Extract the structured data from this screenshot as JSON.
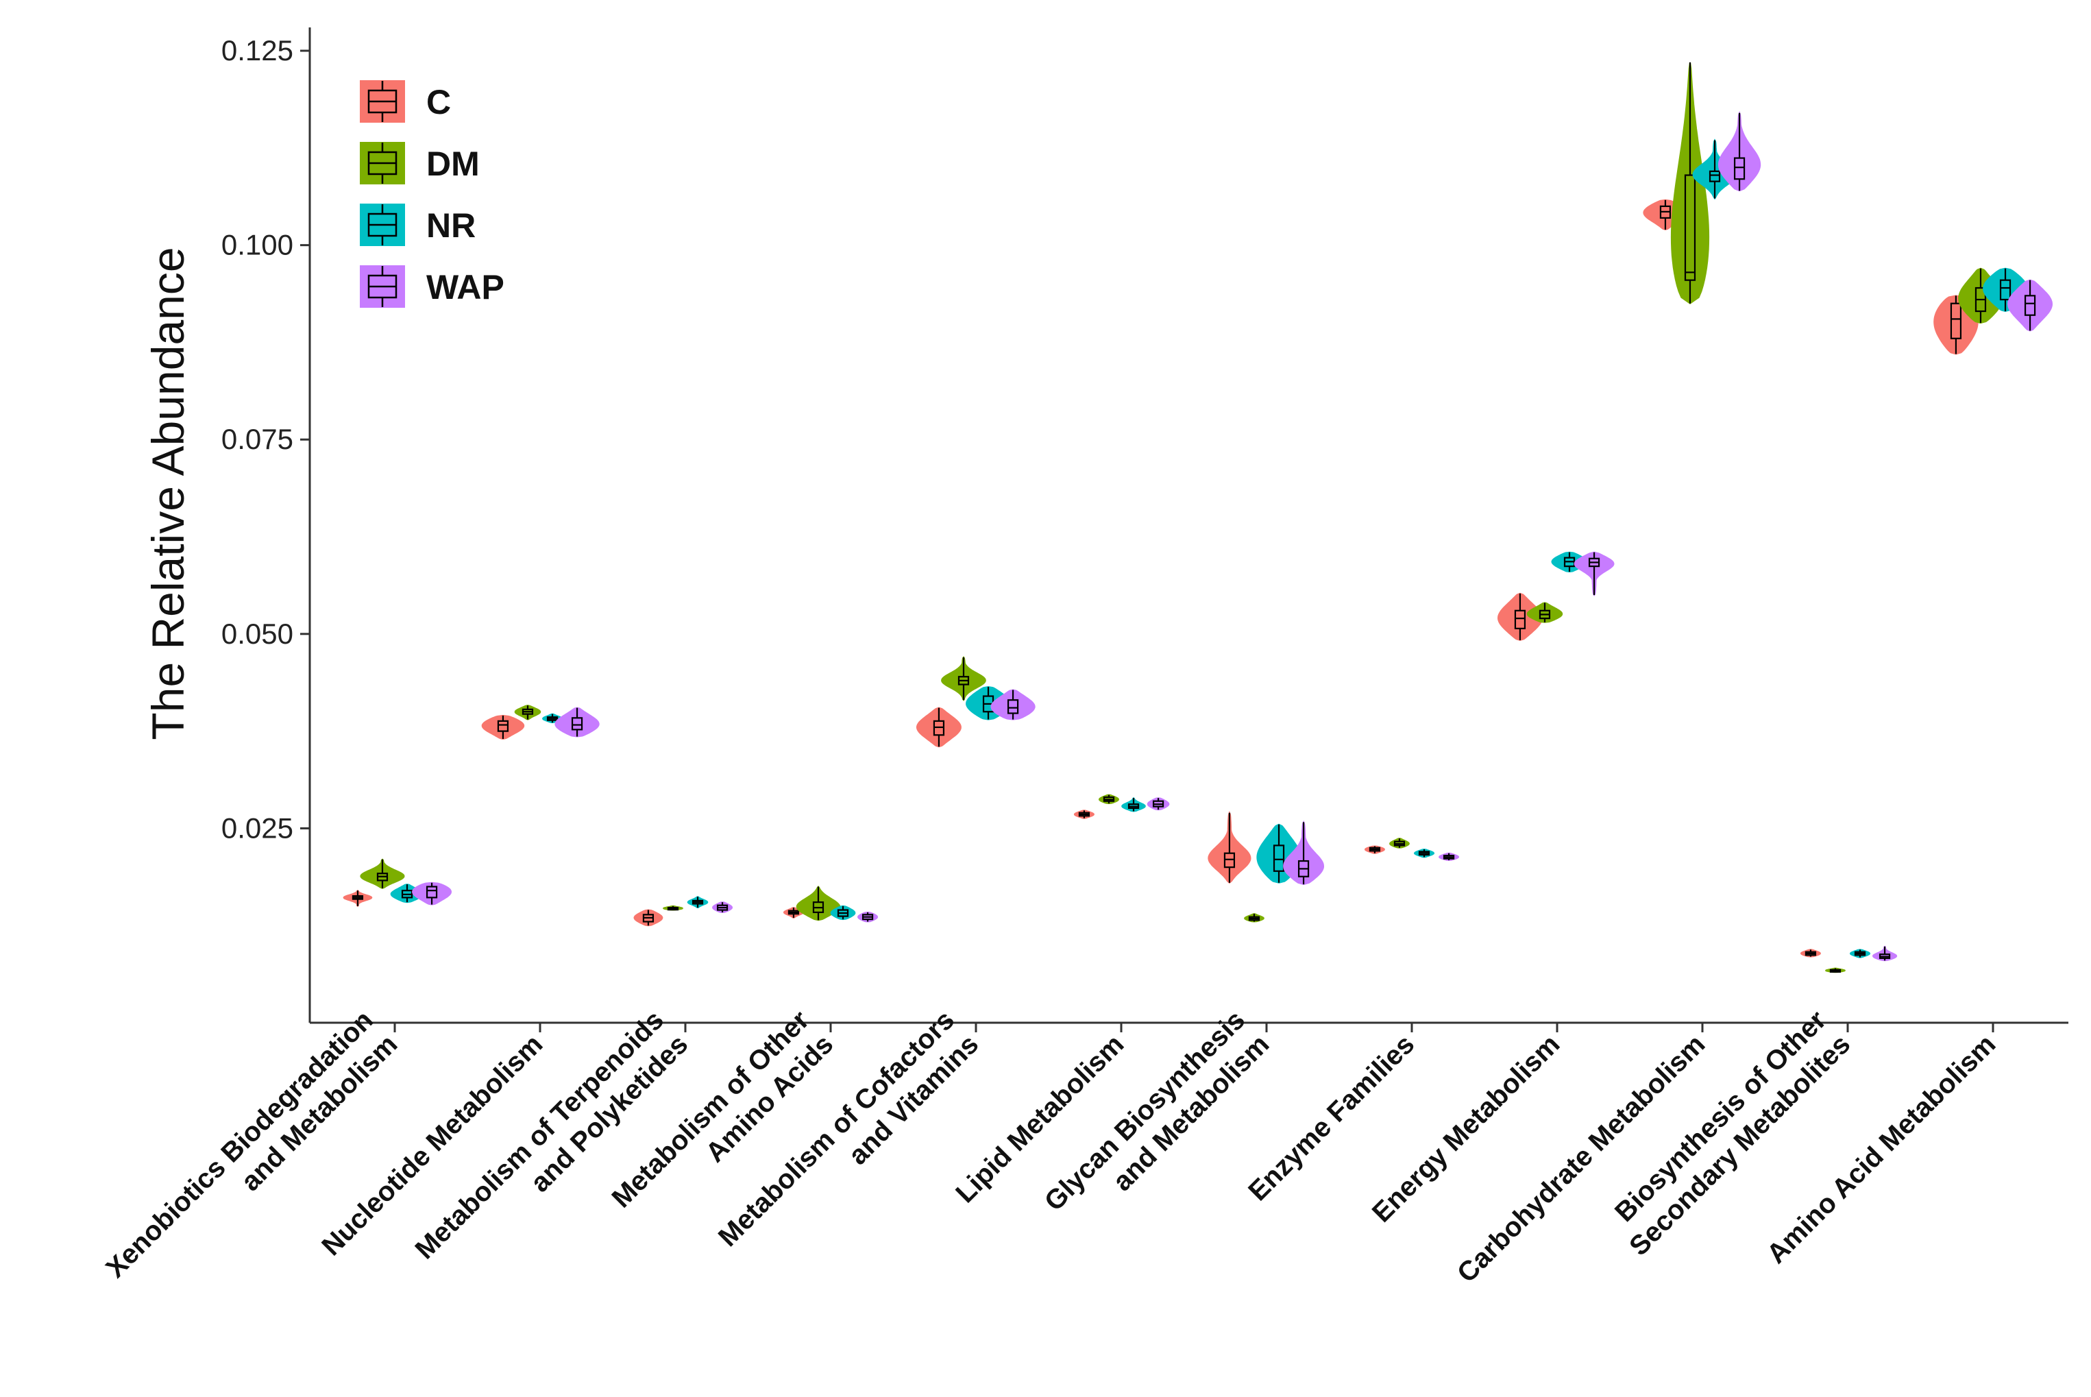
{
  "chart_data": {
    "type": "violin",
    "ylabel": "The Relative Abundance",
    "xlabel": "",
    "ylim": [
      0.0,
      0.128
    ],
    "yticks": [
      0.025,
      0.05,
      0.075,
      0.1,
      0.125
    ],
    "ytick_labels": [
      "0.025",
      "0.050",
      "0.075",
      "0.100",
      "0.125"
    ],
    "legend_position": "top-left",
    "series": [
      {
        "name": "C",
        "color": "#F8766D"
      },
      {
        "name": "DM",
        "color": "#7CAE00"
      },
      {
        "name": "NR",
        "color": "#00BFC4"
      },
      {
        "name": "WAP",
        "color": "#C77CFF"
      }
    ],
    "categories": [
      {
        "lines": [
          "Xenobiotics Biodegradation",
          "and Metabolism"
        ]
      },
      {
        "lines": [
          "Nucleotide Metabolism"
        ]
      },
      {
        "lines": [
          "Metabolism of Terpenoids",
          "and Polyketides"
        ]
      },
      {
        "lines": [
          "Metabolism of Other",
          "Amino Acids"
        ]
      },
      {
        "lines": [
          "Metabolism of Cofactors",
          "and Vitamins"
        ]
      },
      {
        "lines": [
          "Lipid Metabolism"
        ]
      },
      {
        "lines": [
          "Glycan Biosynthesis",
          "and Metabolism"
        ]
      },
      {
        "lines": [
          "Enzyme Families"
        ]
      },
      {
        "lines": [
          "Energy Metabolism"
        ]
      },
      {
        "lines": [
          "Carbohydrate Metabolism"
        ]
      },
      {
        "lines": [
          "Biosynthesis of Other",
          "Secondary Metabolites"
        ]
      },
      {
        "lines": [
          "Amino Acid Metabolism"
        ]
      }
    ],
    "data": [
      [
        [
          0.015,
          0.0159,
          0.0161,
          0.0163,
          0.017
        ],
        [
          0.0173,
          0.0183,
          0.0188,
          0.0192,
          0.021
        ],
        [
          0.0155,
          0.0161,
          0.0165,
          0.017,
          0.0178
        ],
        [
          0.0152,
          0.0161,
          0.017,
          0.0175,
          0.018
        ]
      ],
      [
        [
          0.0365,
          0.0375,
          0.0383,
          0.0388,
          0.0395
        ],
        [
          0.039,
          0.0397,
          0.04,
          0.0403,
          0.0408
        ],
        [
          0.0386,
          0.0389,
          0.0391,
          0.0393,
          0.0397
        ],
        [
          0.0368,
          0.0377,
          0.0383,
          0.0392,
          0.0405
        ]
      ],
      [
        [
          0.0125,
          0.013,
          0.0135,
          0.0139,
          0.0145
        ],
        [
          0.0145,
          0.0146,
          0.0147,
          0.0148,
          0.015
        ],
        [
          0.0148,
          0.0153,
          0.0155,
          0.0157,
          0.0162
        ],
        [
          0.0142,
          0.0145,
          0.0148,
          0.0151,
          0.0155
        ]
      ],
      [
        [
          0.0135,
          0.014,
          0.0142,
          0.0144,
          0.0148
        ],
        [
          0.0132,
          0.0142,
          0.0148,
          0.0155,
          0.0175
        ],
        [
          0.0133,
          0.0137,
          0.0141,
          0.0145,
          0.015
        ],
        [
          0.013,
          0.0133,
          0.0136,
          0.0139,
          0.0142
        ]
      ],
      [
        [
          0.0355,
          0.037,
          0.038,
          0.0388,
          0.0405
        ],
        [
          0.0415,
          0.0435,
          0.044,
          0.0445,
          0.047
        ],
        [
          0.039,
          0.04,
          0.041,
          0.042,
          0.0432
        ],
        [
          0.039,
          0.0398,
          0.0405,
          0.0415,
          0.0428
        ]
      ],
      [
        [
          0.0263,
          0.0266,
          0.0268,
          0.027,
          0.0273
        ],
        [
          0.0282,
          0.0285,
          0.0287,
          0.029,
          0.0293
        ],
        [
          0.0272,
          0.0276,
          0.0278,
          0.0281,
          0.0289
        ],
        [
          0.0274,
          0.0278,
          0.0281,
          0.0285,
          0.0289
        ]
      ],
      [
        [
          0.018,
          0.02,
          0.021,
          0.0218,
          0.027
        ],
        [
          0.013,
          0.0132,
          0.0134,
          0.0136,
          0.014
        ],
        [
          0.018,
          0.0195,
          0.021,
          0.0228,
          0.0255
        ],
        [
          0.0178,
          0.0188,
          0.0198,
          0.0208,
          0.0258
        ]
      ],
      [
        [
          0.0218,
          0.0221,
          0.0223,
          0.0225,
          0.0227
        ],
        [
          0.0225,
          0.0228,
          0.023,
          0.0233,
          0.0237
        ],
        [
          0.0213,
          0.0216,
          0.0218,
          0.022,
          0.0223
        ],
        [
          0.0209,
          0.0211,
          0.0213,
          0.0215,
          0.0218
        ]
      ],
      [
        [
          0.0492,
          0.0507,
          0.052,
          0.053,
          0.0552
        ],
        [
          0.0515,
          0.052,
          0.0525,
          0.053,
          0.054
        ],
        [
          0.058,
          0.0587,
          0.0593,
          0.0598,
          0.0605
        ],
        [
          0.055,
          0.0587,
          0.0592,
          0.0597,
          0.0605
        ]
      ],
      [
        [
          0.102,
          0.1035,
          0.1043,
          0.105,
          0.1058
        ],
        [
          0.0925,
          0.0955,
          0.0965,
          0.109,
          0.1235
        ],
        [
          0.106,
          0.1082,
          0.109,
          0.1095,
          0.1135
        ],
        [
          0.107,
          0.1085,
          0.11,
          0.1112,
          0.117
        ]
      ],
      [
        [
          0.0085,
          0.0087,
          0.0089,
          0.0091,
          0.0094
        ],
        [
          0.0065,
          0.0066,
          0.0067,
          0.0068,
          0.007
        ],
        [
          0.0084,
          0.0087,
          0.0089,
          0.0091,
          0.0094
        ],
        [
          0.008,
          0.0083,
          0.0085,
          0.0088,
          0.0098
        ]
      ],
      [
        [
          0.086,
          0.088,
          0.0905,
          0.0925,
          0.0935
        ],
        [
          0.09,
          0.0915,
          0.093,
          0.0945,
          0.097
        ],
        [
          0.0915,
          0.093,
          0.0945,
          0.0955,
          0.097
        ],
        [
          0.089,
          0.091,
          0.0925,
          0.0935,
          0.0955
        ]
      ]
    ]
  }
}
